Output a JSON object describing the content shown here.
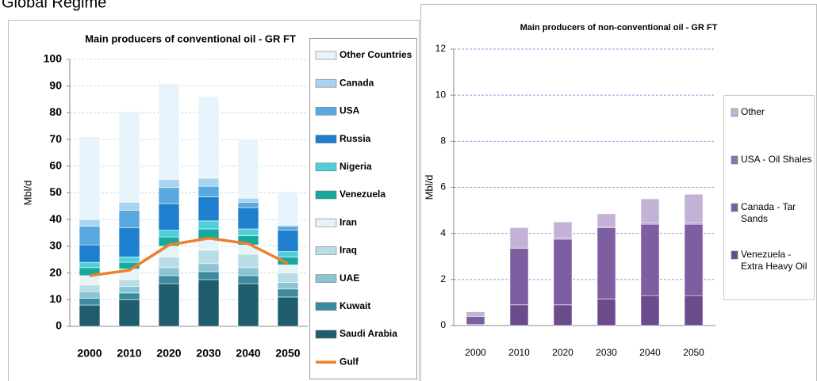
{
  "heading": "Global Regime",
  "chart_data": [
    {
      "type": "bar",
      "stacked": true,
      "title": "Main producers of conventional oil - GR FT",
      "y_label": "Mbl/d",
      "categories": [
        "2000",
        "2010",
        "2020",
        "2030",
        "2040",
        "2050"
      ],
      "ylim": [
        0,
        100
      ],
      "yticks": [
        0,
        10,
        20,
        30,
        40,
        50,
        60,
        70,
        80,
        90,
        100
      ],
      "grid": true,
      "legend": "right",
      "series": [
        {
          "name": "Saudi Arabia",
          "color": "#1f5c6e",
          "values": [
            8,
            10,
            16,
            17.5,
            16,
            11
          ]
        },
        {
          "name": "Kuwait",
          "color": "#3a8aa0",
          "values": [
            2.5,
            2.5,
            3,
            3,
            3,
            3
          ]
        },
        {
          "name": "UAE",
          "color": "#8cc4d4",
          "values": [
            2.5,
            2.5,
            3,
            3,
            3,
            2.5
          ]
        },
        {
          "name": "Iraq",
          "color": "#b8dde6",
          "values": [
            2.5,
            2.5,
            4,
            5,
            5,
            3.5
          ]
        },
        {
          "name": "Iran",
          "color": "#e6f4f7",
          "values": [
            3.5,
            4,
            4,
            4,
            3.5,
            3
          ]
        },
        {
          "name": "Venezuela",
          "color": "#16a9a0",
          "values": [
            3,
            2.5,
            3.5,
            4,
            3.5,
            3
          ]
        },
        {
          "name": "Nigeria",
          "color": "#4fd0d8",
          "values": [
            2,
            2,
            2.5,
            3,
            2.5,
            2
          ]
        },
        {
          "name": "Russia",
          "color": "#1f7fcf",
          "values": [
            6.5,
            11,
            10,
            9,
            8,
            8
          ]
        },
        {
          "name": "USA",
          "color": "#5aa8e0",
          "values": [
            7,
            6.5,
            6,
            4,
            2,
            1.5
          ]
        },
        {
          "name": "Canada",
          "color": "#a8d4ef",
          "values": [
            2.5,
            3,
            3,
            3,
            1.5,
            0.5
          ]
        },
        {
          "name": "Other Countries",
          "color": "#e8f4fb",
          "values": [
            31,
            34,
            36,
            30.5,
            22,
            12.5
          ]
        },
        {
          "name": "Gulf",
          "type": "line",
          "color": "#ee7f2d",
          "values": [
            19,
            21,
            30.5,
            33,
            31,
            23.5
          ]
        }
      ]
    },
    {
      "type": "bar",
      "stacked": true,
      "title": "Main producers  of non-conventional  oil - GR FT",
      "y_label": "Mbl/d",
      "categories": [
        "2000",
        "2010",
        "2020",
        "2030",
        "2040",
        "2050"
      ],
      "ylim": [
        0,
        12
      ],
      "yticks": [
        0,
        2,
        4,
        6,
        8,
        10,
        12
      ],
      "grid": true,
      "legend": "right",
      "series": [
        {
          "name": "Venezuela - Extra Heavy Oil",
          "color": "#6a4c8c",
          "values": [
            0.05,
            0.9,
            0.9,
            1.15,
            1.3,
            1.3
          ]
        },
        {
          "name": "Canada - Tar Sands",
          "color": "#7d5ea0",
          "values": [
            0.35,
            2.45,
            2.85,
            3.1,
            3.1,
            3.1
          ]
        },
        {
          "name": "USA - Oil Shales",
          "color": "#8f72b0",
          "values": [
            0,
            0.05,
            0.05,
            0.05,
            0.05,
            0.05
          ]
        },
        {
          "name": "Other",
          "color": "#c2b2d6",
          "values": [
            0.2,
            0.85,
            0.7,
            0.55,
            1.05,
            1.25
          ]
        }
      ]
    }
  ]
}
